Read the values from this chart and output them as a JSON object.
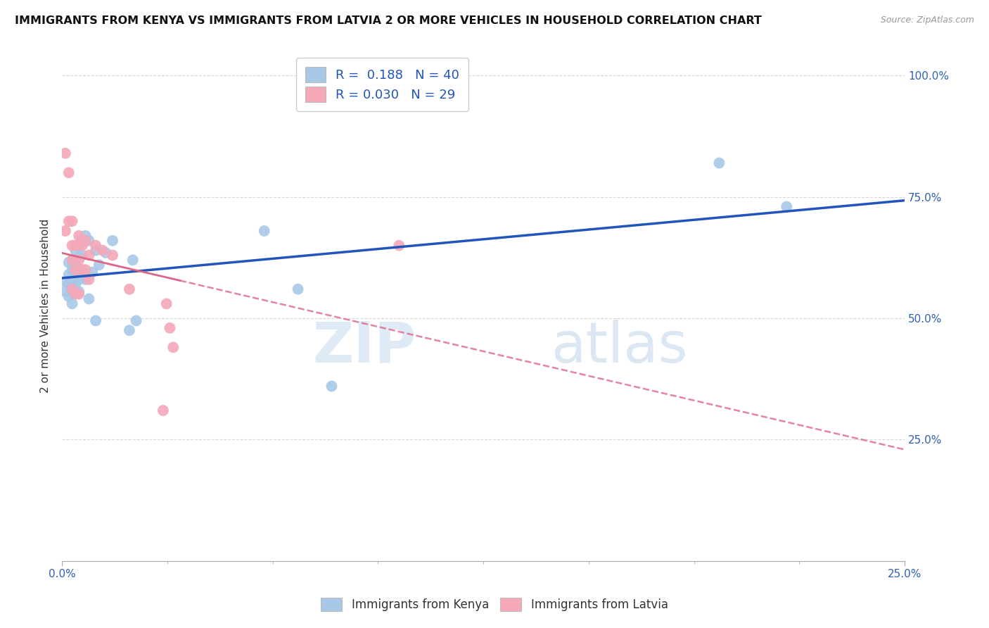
{
  "title": "IMMIGRANTS FROM KENYA VS IMMIGRANTS FROM LATVIA 2 OR MORE VEHICLES IN HOUSEHOLD CORRELATION CHART",
  "source": "Source: ZipAtlas.com",
  "ylabel": "2 or more Vehicles in Household",
  "x_ticks": [
    "0.0%",
    "",
    "",
    "",
    "",
    "",
    "",
    "",
    "25.0%"
  ],
  "x_tick_vals": [
    0.0,
    0.03125,
    0.0625,
    0.09375,
    0.125,
    0.15625,
    0.1875,
    0.21875,
    0.25
  ],
  "y_ticks": [
    "",
    "25.0%",
    "50.0%",
    "75.0%",
    "100.0%"
  ],
  "y_tick_vals": [
    0.0,
    0.25,
    0.5,
    0.75,
    1.0
  ],
  "xlim": [
    0.0,
    0.25
  ],
  "ylim": [
    0.0,
    1.05
  ],
  "kenya_R": 0.188,
  "kenya_N": 40,
  "latvia_R": 0.03,
  "latvia_N": 29,
  "kenya_color": "#a8c8e8",
  "latvia_color": "#f4a8b8",
  "kenya_line_color": "#2255bb",
  "latvia_line_color": "#dd6688",
  "watermark_zip": "ZIP",
  "watermark_atlas": "atlas",
  "legend_labels": [
    "Immigrants from Kenya",
    "Immigrants from Latvia"
  ],
  "kenya_x": [
    0.001,
    0.001,
    0.002,
    0.002,
    0.002,
    0.002,
    0.003,
    0.003,
    0.003,
    0.003,
    0.003,
    0.004,
    0.004,
    0.004,
    0.004,
    0.005,
    0.005,
    0.005,
    0.005,
    0.006,
    0.006,
    0.006,
    0.007,
    0.007,
    0.008,
    0.008,
    0.009,
    0.01,
    0.01,
    0.011,
    0.013,
    0.015,
    0.02,
    0.021,
    0.022,
    0.06,
    0.07,
    0.08,
    0.195,
    0.215
  ],
  "kenya_y": [
    0.575,
    0.555,
    0.615,
    0.59,
    0.57,
    0.545,
    0.62,
    0.6,
    0.58,
    0.555,
    0.53,
    0.64,
    0.61,
    0.59,
    0.57,
    0.65,
    0.625,
    0.58,
    0.555,
    0.66,
    0.63,
    0.595,
    0.67,
    0.58,
    0.66,
    0.54,
    0.595,
    0.64,
    0.495,
    0.61,
    0.635,
    0.66,
    0.475,
    0.62,
    0.495,
    0.68,
    0.56,
    0.36,
    0.82,
    0.73
  ],
  "latvia_x": [
    0.001,
    0.001,
    0.002,
    0.002,
    0.003,
    0.003,
    0.003,
    0.003,
    0.004,
    0.004,
    0.004,
    0.005,
    0.005,
    0.005,
    0.006,
    0.006,
    0.007,
    0.007,
    0.008,
    0.008,
    0.01,
    0.012,
    0.015,
    0.02,
    0.03,
    0.031,
    0.032,
    0.033,
    0.1
  ],
  "latvia_y": [
    0.84,
    0.68,
    0.8,
    0.7,
    0.7,
    0.65,
    0.62,
    0.56,
    0.65,
    0.6,
    0.55,
    0.67,
    0.62,
    0.55,
    0.65,
    0.6,
    0.66,
    0.6,
    0.63,
    0.58,
    0.65,
    0.64,
    0.63,
    0.56,
    0.31,
    0.53,
    0.48,
    0.44,
    0.65
  ]
}
